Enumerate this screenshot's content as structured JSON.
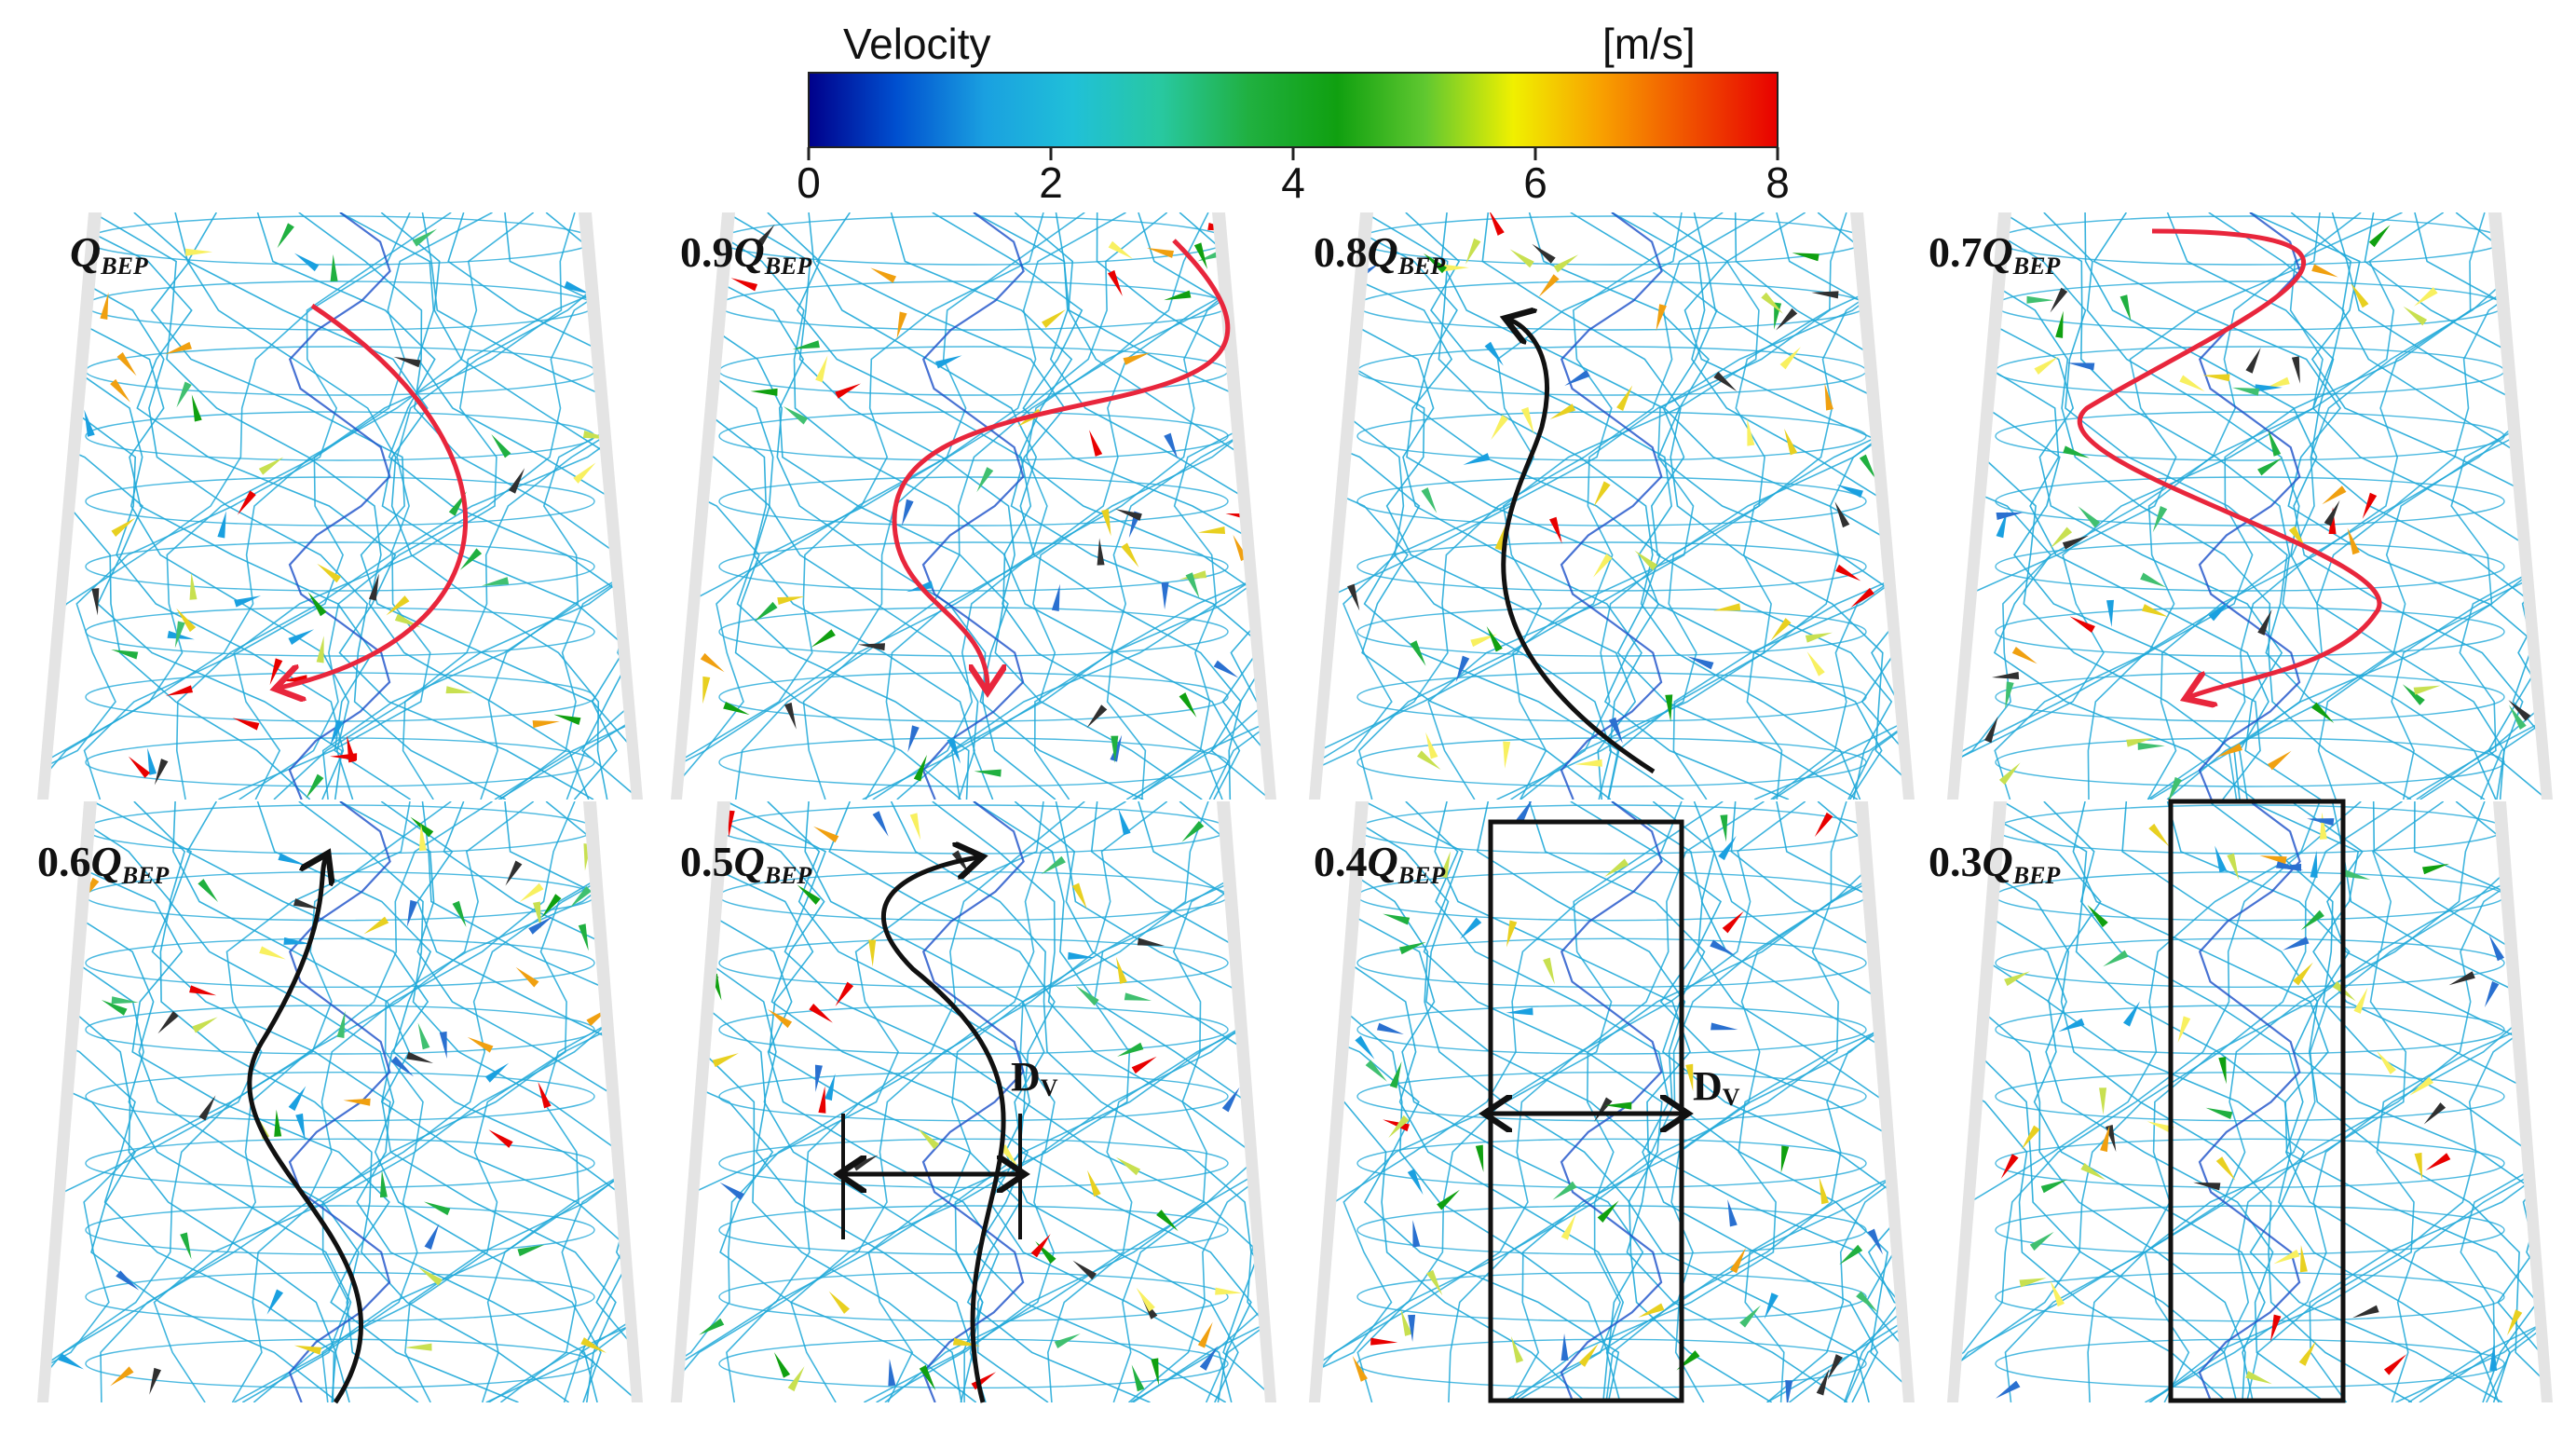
{
  "colorbar": {
    "title": "Velocity",
    "unit": "[m/s]",
    "ticks": [
      "0",
      "2",
      "4",
      "6",
      "8"
    ],
    "min": 0,
    "max": 8,
    "colors": [
      "#00008b",
      "#0050d0",
      "#1aa0e0",
      "#20c0d8",
      "#28c8a0",
      "#20b040",
      "#10a010",
      "#60c830",
      "#f0f000",
      "#f8a000",
      "#f05000",
      "#e80000"
    ]
  },
  "panels": [
    {
      "prefix": "",
      "main": "Q",
      "sub": "BEP",
      "overlay": "vortex-arrow",
      "arrow_color": "#e8263c",
      "arrow_direction": "down",
      "dv": ""
    },
    {
      "prefix": "0.9",
      "main": "Q",
      "sub": "BEP",
      "overlay": "vortex-arrow",
      "arrow_color": "#e8263c",
      "arrow_direction": "down",
      "dv": ""
    },
    {
      "prefix": "0.8",
      "main": "Q",
      "sub": "BEP",
      "overlay": "vortex-arrow",
      "arrow_color": "#111111",
      "arrow_direction": "up",
      "dv": ""
    },
    {
      "prefix": "0.7",
      "main": "Q",
      "sub": "BEP",
      "overlay": "vortex-arrow",
      "arrow_color": "#e8263c",
      "arrow_direction": "down",
      "dv": ""
    },
    {
      "prefix": "0.6",
      "main": "Q",
      "sub": "BEP",
      "overlay": "vortex-arrow",
      "arrow_color": "#111111",
      "arrow_direction": "up",
      "dv": ""
    },
    {
      "prefix": "0.5",
      "main": "Q",
      "sub": "BEP",
      "overlay": "vortex-arrow-with-dv",
      "arrow_color": "#111111",
      "arrow_direction": "up",
      "dv": "D",
      "dv_sub": "V"
    },
    {
      "prefix": "0.4",
      "main": "Q",
      "sub": "BEP",
      "overlay": "box-with-dv",
      "arrow_color": "#111111",
      "arrow_direction": "",
      "dv": "D",
      "dv_sub": "V"
    },
    {
      "prefix": "0.3",
      "main": "Q",
      "sub": "BEP",
      "overlay": "box",
      "arrow_color": "#111111",
      "arrow_direction": "",
      "dv": ""
    }
  ],
  "streamline_colors": {
    "lines": "#1fa8d8",
    "core": "#1a4fc8",
    "wall": "#e4e4e4"
  }
}
